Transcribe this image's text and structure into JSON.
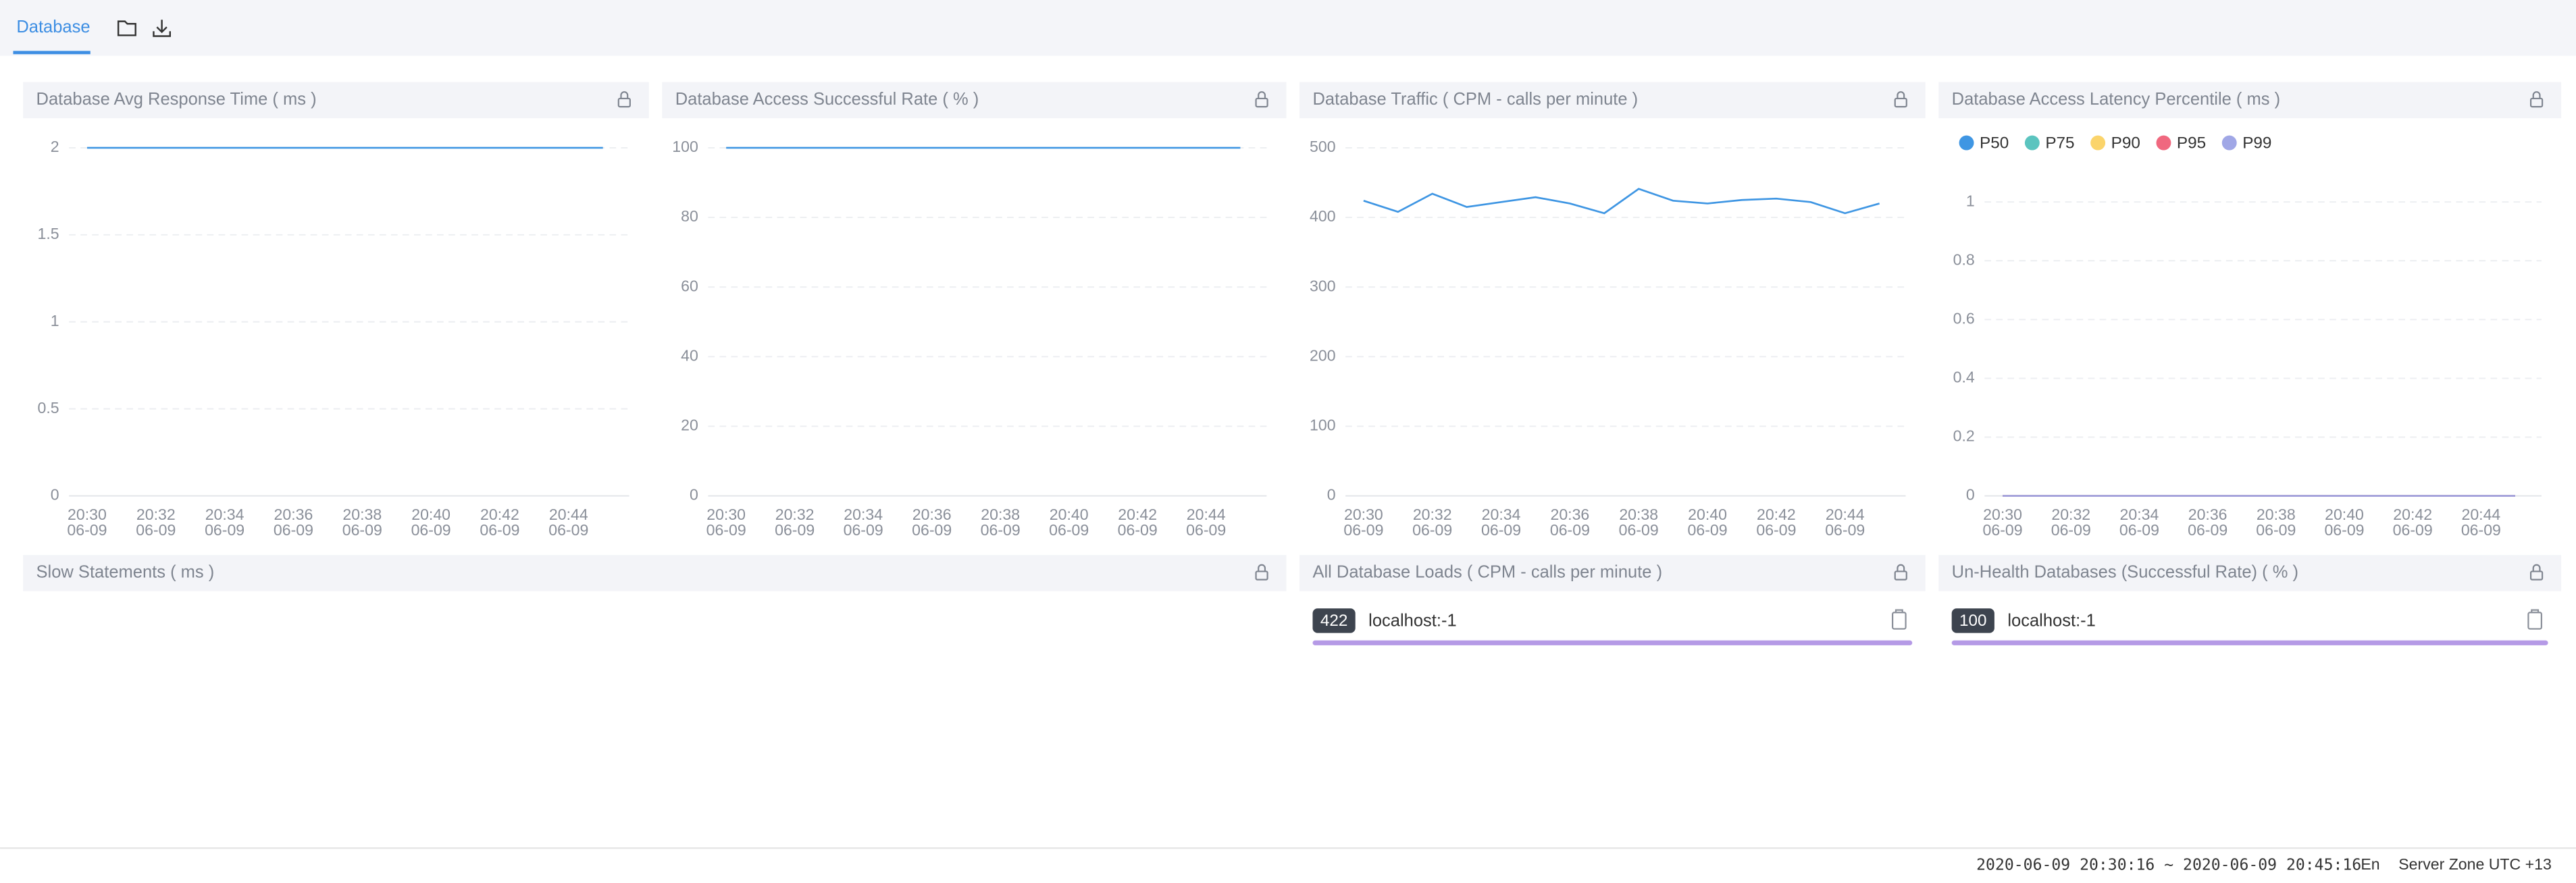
{
  "tabs": [
    "Database"
  ],
  "chart_data": [
    {
      "type": "line",
      "title": "Database Avg Response Time ( ms )",
      "categories": [
        "20:30",
        null,
        "20:32",
        null,
        "20:34",
        null,
        "20:36",
        null,
        "20:38",
        null,
        "20:40",
        null,
        "20:42",
        null,
        "20:44",
        null
      ],
      "dates": [
        "06-09",
        null,
        "06-09",
        null,
        "06-09",
        null,
        "06-09",
        null,
        "06-09",
        null,
        "06-09",
        null,
        "06-09",
        null,
        "06-09",
        null
      ],
      "values": [
        2,
        2,
        2,
        2,
        2,
        2,
        2,
        2,
        2,
        2,
        2,
        2,
        2,
        2,
        2,
        2
      ],
      "color": "#3f96e3",
      "ylim": [
        0,
        2
      ],
      "yticks": [
        0,
        0.5,
        1,
        1.5,
        2
      ],
      "grid": true
    },
    {
      "type": "line",
      "title": "Database Access Successful Rate ( % )",
      "categories": [
        "20:30",
        null,
        "20:32",
        null,
        "20:34",
        null,
        "20:36",
        null,
        "20:38",
        null,
        "20:40",
        null,
        "20:42",
        null,
        "20:44",
        null
      ],
      "dates": [
        "06-09",
        null,
        "06-09",
        null,
        "06-09",
        null,
        "06-09",
        null,
        "06-09",
        null,
        "06-09",
        null,
        "06-09",
        null,
        "06-09",
        null
      ],
      "values": [
        100,
        100,
        100,
        100,
        100,
        100,
        100,
        100,
        100,
        100,
        100,
        100,
        100,
        100,
        100,
        100
      ],
      "color": "#3f96e3",
      "ylim": [
        0,
        100
      ],
      "yticks": [
        0,
        20,
        40,
        60,
        80,
        100
      ],
      "grid": true
    },
    {
      "type": "line",
      "title": "Database Traffic ( CPM - calls per minute )",
      "categories": [
        "20:30",
        null,
        "20:32",
        null,
        "20:34",
        null,
        "20:36",
        null,
        "20:38",
        null,
        "20:40",
        null,
        "20:42",
        null,
        "20:44",
        null
      ],
      "dates": [
        "06-09",
        null,
        "06-09",
        null,
        "06-09",
        null,
        "06-09",
        null,
        "06-09",
        null,
        "06-09",
        null,
        "06-09",
        null,
        "06-09",
        null
      ],
      "values": [
        424,
        408,
        434,
        415,
        422,
        429,
        420,
        406,
        441,
        424,
        420,
        425,
        427,
        422,
        406,
        420
      ],
      "color": "#3f96e3",
      "ylim": [
        0,
        500
      ],
      "yticks": [
        0,
        100,
        200,
        300,
        400,
        500
      ],
      "grid": true
    },
    {
      "type": "line",
      "title": "Database Access Latency Percentile ( ms )",
      "categories": [
        "20:30",
        null,
        "20:32",
        null,
        "20:34",
        null,
        "20:36",
        null,
        "20:38",
        null,
        "20:40",
        null,
        "20:42",
        null,
        "20:44",
        null
      ],
      "dates": [
        "06-09",
        null,
        "06-09",
        null,
        "06-09",
        null,
        "06-09",
        null,
        "06-09",
        null,
        "06-09",
        null,
        "06-09",
        null,
        "06-09",
        null
      ],
      "series": [
        {
          "name": "P50",
          "color": "#3f96e3",
          "values": [
            0,
            0,
            0,
            0,
            0,
            0,
            0,
            0,
            0,
            0,
            0,
            0,
            0,
            0,
            0,
            0
          ]
        },
        {
          "name": "P75",
          "color": "#5bc4bf",
          "values": [
            0,
            0,
            0,
            0,
            0,
            0,
            0,
            0,
            0,
            0,
            0,
            0,
            0,
            0,
            0,
            0
          ]
        },
        {
          "name": "P90",
          "color": "#fbd46b",
          "values": [
            0,
            0,
            0,
            0,
            0,
            0,
            0,
            0,
            0,
            0,
            0,
            0,
            0,
            0,
            0,
            0
          ]
        },
        {
          "name": "P95",
          "color": "#f0687f",
          "values": [
            0,
            0,
            0,
            0,
            0,
            0,
            0,
            0,
            0,
            0,
            0,
            0,
            0,
            0,
            0,
            0
          ]
        },
        {
          "name": "P99",
          "color": "#a0a7e6",
          "values": [
            0,
            0,
            0,
            0,
            0,
            0,
            0,
            0,
            0,
            0,
            0,
            0,
            0,
            0,
            0,
            0
          ]
        }
      ],
      "ylim": [
        0,
        1
      ],
      "yticks": [
        0,
        0.2,
        0.4,
        0.6,
        0.8,
        1
      ],
      "grid": true,
      "legend": "top"
    }
  ],
  "panels": [
    {
      "title": "Slow Statements ( ms )"
    },
    {
      "title": "All Database Loads ( CPM - calls per minute )",
      "items": [
        {
          "value": 422,
          "label": "localhost:-1"
        }
      ]
    },
    {
      "title": "Un-Health Databases (Successful Rate) ( % )",
      "items": [
        {
          "value": 100,
          "label": "localhost:-1"
        }
      ]
    }
  ],
  "footer": {
    "time_range": "2020-06-09 20:30:16 ~ 2020-06-09 20:45:16",
    "language": "En",
    "server_zone": "Server Zone UTC +13"
  }
}
